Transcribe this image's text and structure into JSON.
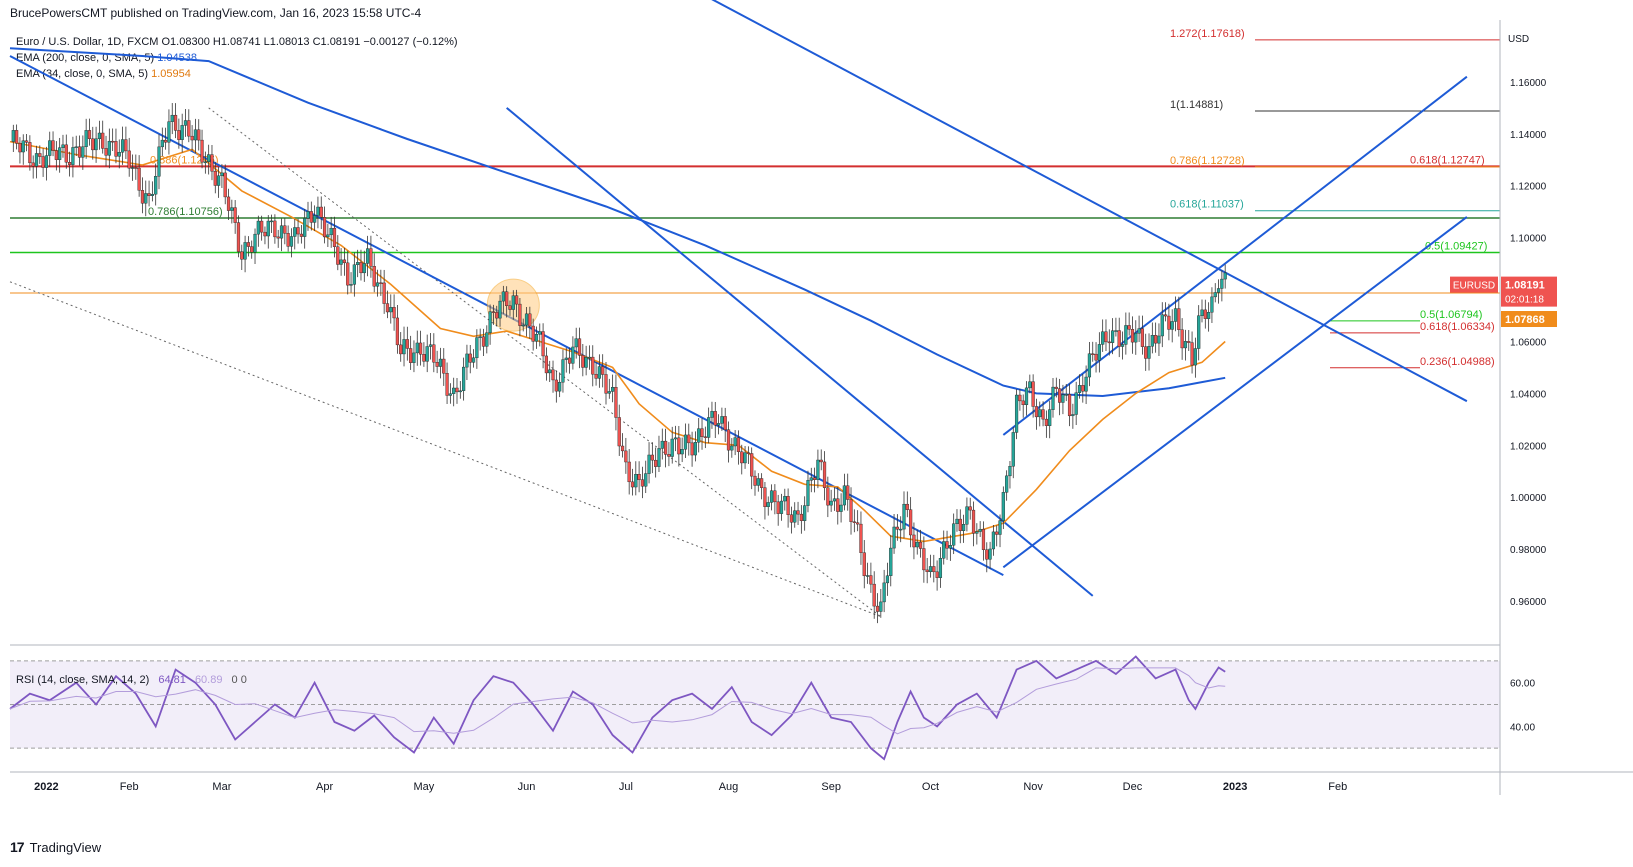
{
  "header": {
    "attribution": "BrucePowersCMT published on TradingView.com, Jan 16, 2023 15:58 UTC-4"
  },
  "legend": {
    "symbol": "Euro / U.S. Dollar, 1D, FXCM",
    "ohlc": "O1.08300 H1.08741 L1.08013 C1.08191 −0.00127 (−0.12%)",
    "ema200_label": "EMA (200, close, 0, SMA, 5)",
    "ema200_value": "1.04538",
    "ema34_label": "EMA (34, close, 0, SMA, 5)",
    "ema34_value": "1.05954"
  },
  "footer": {
    "brand": "TradingView",
    "brand_mark": "17"
  },
  "colors": {
    "blue": "#1e5bd6",
    "orange": "#f08c1c",
    "green": "#4caf50",
    "red": "#d32f2f",
    "dark_green": "#2e7d32",
    "bright_green": "#1ec51e",
    "teal": "#26a69a",
    "candle_up": "#26a69a",
    "candle_down": "#ef5350",
    "rsi": "#7e57c2"
  },
  "chart_data": {
    "type": "candlestick",
    "symbol": "EURUSD",
    "timeframe": "1D",
    "currency_label": "USD",
    "x_labels": [
      "2022",
      "Feb",
      "Mar",
      "Apr",
      "May",
      "Jun",
      "Jul",
      "Aug",
      "Sep",
      "Oct",
      "Nov",
      "Dec",
      "2023",
      "Feb"
    ],
    "y_ticks": [
      "1.16000",
      "1.14000",
      "1.12000",
      "1.10000",
      "1.08000",
      "1.06000",
      "1.04000",
      "1.02000",
      "1.00000",
      "0.98000",
      "0.96000"
    ],
    "ylim": [
      0.945,
      1.18
    ],
    "price_tags": [
      {
        "label": "EURUSD",
        "value": "1.08191",
        "sub": "02:01:18",
        "color": "#ef5350"
      },
      {
        "label": "",
        "value": "1.07868",
        "sub": "",
        "color": "#f08c1c"
      }
    ],
    "close_path_points": [
      {
        "t": 0,
        "p": 1.137
      },
      {
        "t": 8,
        "p": 1.131
      },
      {
        "t": 18,
        "p": 1.133
      },
      {
        "t": 28,
        "p": 1.138
      },
      {
        "t": 36,
        "p": 1.13
      },
      {
        "t": 42,
        "p": 1.113
      },
      {
        "t": 48,
        "p": 1.146
      },
      {
        "t": 54,
        "p": 1.14
      },
      {
        "t": 60,
        "p": 1.13
      },
      {
        "t": 64,
        "p": 1.12
      },
      {
        "t": 70,
        "p": 1.095
      },
      {
        "t": 74,
        "p": 1.1
      },
      {
        "t": 80,
        "p": 1.105
      },
      {
        "t": 86,
        "p": 1.098
      },
      {
        "t": 92,
        "p": 1.113
      },
      {
        "t": 96,
        "p": 1.1
      },
      {
        "t": 102,
        "p": 1.086
      },
      {
        "t": 108,
        "p": 1.09
      },
      {
        "t": 114,
        "p": 1.076
      },
      {
        "t": 118,
        "p": 1.055
      },
      {
        "t": 124,
        "p": 1.058
      },
      {
        "t": 128,
        "p": 1.053
      },
      {
        "t": 134,
        "p": 1.04
      },
      {
        "t": 140,
        "p": 1.055
      },
      {
        "t": 146,
        "p": 1.072
      },
      {
        "t": 152,
        "p": 1.075
      },
      {
        "t": 156,
        "p": 1.068
      },
      {
        "t": 160,
        "p": 1.058
      },
      {
        "t": 164,
        "p": 1.044
      },
      {
        "t": 170,
        "p": 1.056
      },
      {
        "t": 176,
        "p": 1.052
      },
      {
        "t": 182,
        "p": 1.037
      },
      {
        "t": 186,
        "p": 1.012
      },
      {
        "t": 190,
        "p": 1.003
      },
      {
        "t": 196,
        "p": 1.02
      },
      {
        "t": 202,
        "p": 1.018
      },
      {
        "t": 208,
        "p": 1.024
      },
      {
        "t": 214,
        "p": 1.03
      },
      {
        "t": 220,
        "p": 1.018
      },
      {
        "t": 226,
        "p": 1.005
      },
      {
        "t": 232,
        "p": 0.996
      },
      {
        "t": 238,
        "p": 0.993
      },
      {
        "t": 244,
        "p": 1.012
      },
      {
        "t": 248,
        "p": 0.998
      },
      {
        "t": 252,
        "p": 1.0
      },
      {
        "t": 256,
        "p": 0.985
      },
      {
        "t": 260,
        "p": 0.965
      },
      {
        "t": 263,
        "p": 0.955
      },
      {
        "t": 266,
        "p": 0.98
      },
      {
        "t": 270,
        "p": 0.998
      },
      {
        "t": 274,
        "p": 0.978
      },
      {
        "t": 278,
        "p": 0.97
      },
      {
        "t": 282,
        "p": 0.98
      },
      {
        "t": 286,
        "p": 0.987
      },
      {
        "t": 290,
        "p": 0.996
      },
      {
        "t": 294,
        "p": 0.98
      },
      {
        "t": 296,
        "p": 0.976
      },
      {
        "t": 300,
        "p": 1.0
      },
      {
        "t": 304,
        "p": 1.035
      },
      {
        "t": 308,
        "p": 1.04
      },
      {
        "t": 312,
        "p": 1.03
      },
      {
        "t": 316,
        "p": 1.04
      },
      {
        "t": 320,
        "p": 1.034
      },
      {
        "t": 324,
        "p": 1.045
      },
      {
        "t": 328,
        "p": 1.055
      },
      {
        "t": 332,
        "p": 1.065
      },
      {
        "t": 336,
        "p": 1.06
      },
      {
        "t": 340,
        "p": 1.063
      },
      {
        "t": 344,
        "p": 1.058
      },
      {
        "t": 348,
        "p": 1.065
      },
      {
        "t": 352,
        "p": 1.07
      },
      {
        "t": 355,
        "p": 1.06
      },
      {
        "t": 357,
        "p": 1.052
      },
      {
        "t": 359,
        "p": 1.065
      },
      {
        "t": 361,
        "p": 1.072
      },
      {
        "t": 363,
        "p": 1.075
      },
      {
        "t": 365,
        "p": 1.086
      },
      {
        "t": 367,
        "p": 1.082
      }
    ],
    "ema34_points": [
      {
        "t": 0,
        "p": 1.137
      },
      {
        "t": 20,
        "p": 1.132
      },
      {
        "t": 40,
        "p": 1.128
      },
      {
        "t": 55,
        "p": 1.134
      },
      {
        "t": 70,
        "p": 1.118
      },
      {
        "t": 85,
        "p": 1.108
      },
      {
        "t": 100,
        "p": 1.097
      },
      {
        "t": 115,
        "p": 1.082
      },
      {
        "t": 130,
        "p": 1.065
      },
      {
        "t": 140,
        "p": 1.062
      },
      {
        "t": 150,
        "p": 1.064
      },
      {
        "t": 160,
        "p": 1.06
      },
      {
        "t": 170,
        "p": 1.056
      },
      {
        "t": 182,
        "p": 1.05
      },
      {
        "t": 190,
        "p": 1.036
      },
      {
        "t": 200,
        "p": 1.025
      },
      {
        "t": 210,
        "p": 1.021
      },
      {
        "t": 220,
        "p": 1.02
      },
      {
        "t": 230,
        "p": 1.01
      },
      {
        "t": 240,
        "p": 1.005
      },
      {
        "t": 250,
        "p": 1.004
      },
      {
        "t": 258,
        "p": 0.995
      },
      {
        "t": 266,
        "p": 0.985
      },
      {
        "t": 276,
        "p": 0.983
      },
      {
        "t": 290,
        "p": 0.986
      },
      {
        "t": 300,
        "p": 0.99
      },
      {
        "t": 310,
        "p": 1.003
      },
      {
        "t": 320,
        "p": 1.018
      },
      {
        "t": 330,
        "p": 1.03
      },
      {
        "t": 340,
        "p": 1.04
      },
      {
        "t": 350,
        "p": 1.048
      },
      {
        "t": 360,
        "p": 1.052
      },
      {
        "t": 367,
        "p": 1.06
      }
    ],
    "ema200_points": [
      {
        "t": 0,
        "p": 1.173
      },
      {
        "t": 40,
        "p": 1.17
      },
      {
        "t": 60,
        "p": 1.168
      },
      {
        "t": 90,
        "p": 1.152
      },
      {
        "t": 120,
        "p": 1.138
      },
      {
        "t": 150,
        "p": 1.125
      },
      {
        "t": 180,
        "p": 1.112
      },
      {
        "t": 210,
        "p": 1.097
      },
      {
        "t": 240,
        "p": 1.08
      },
      {
        "t": 260,
        "p": 1.068
      },
      {
        "t": 280,
        "p": 1.055
      },
      {
        "t": 300,
        "p": 1.043
      },
      {
        "t": 310,
        "p": 1.04
      },
      {
        "t": 330,
        "p": 1.039
      },
      {
        "t": 350,
        "p": 1.042
      },
      {
        "t": 367,
        "p": 1.046
      }
    ],
    "horizontal_levels": [
      {
        "name": "red-level-1-12747",
        "price": 1.12747,
        "color": "#d32f2f",
        "width": 2
      },
      {
        "name": "green-level-1-10756",
        "price": 1.10756,
        "color": "#2e7d32",
        "width": 1.5
      },
      {
        "name": "green-level-1-09427",
        "price": 1.09427,
        "color": "#1ec51e",
        "width": 1.5
      },
      {
        "name": "orange-level",
        "price": 1.07868,
        "color": "#f08c1c",
        "width": 1
      }
    ],
    "fib_labels": [
      {
        "text": "1.272(1.17618)",
        "price": 1.17618,
        "color": "#d32f2f"
      },
      {
        "text": "1(1.14881)",
        "price": 1.14881,
        "color": "#333333"
      },
      {
        "text": "0.786(1.12728)",
        "price": 1.12728,
        "color": "#f08c1c"
      },
      {
        "text": "0.618(1.12747)",
        "price": 1.12747,
        "color": "#d32f2f"
      },
      {
        "text": "0.618(1.11037)",
        "price": 1.11037,
        "color": "#26a69a"
      },
      {
        "text": "0.786(1.10756)",
        "price": 1.10756,
        "color": "#2e7d32"
      },
      {
        "text": "0.5(1.09427)",
        "price": 1.09427,
        "color": "#1ec51e"
      },
      {
        "text": "0.5(1.06794)",
        "price": 1.06794,
        "color": "#1ec51e"
      },
      {
        "text": "0.618(1.06334)",
        "price": 1.06334,
        "color": "#d32f2f"
      },
      {
        "text": "0.236(1.04988)",
        "price": 1.04988,
        "color": "#d32f2f"
      },
      {
        "text": "0.886(1.1275)",
        "price": 1.1275,
        "color": "#f08c1c"
      }
    ],
    "trendlines": [
      {
        "name": "downtrend-1",
        "from": {
          "t": 0,
          "p": 1.17
        },
        "to": {
          "t": 300,
          "p": 0.97
        }
      },
      {
        "name": "downtrend-2",
        "from": {
          "t": 200,
          "p": 1.2
        },
        "to": {
          "t": 440,
          "p": 1.037
        }
      },
      {
        "name": "downtrend-3",
        "from": {
          "t": 150,
          "p": 1.15
        },
        "to": {
          "t": 327,
          "p": 0.962
        }
      },
      {
        "name": "channel-lower",
        "from": {
          "t": 300,
          "p": 0.973
        },
        "to": {
          "t": 440,
          "p": 1.108
        }
      },
      {
        "name": "channel-upper",
        "from": {
          "t": 300,
          "p": 1.024
        },
        "to": {
          "t": 440,
          "p": 1.162
        }
      }
    ],
    "rsi": {
      "label": "RSI (14, close, SMA, 14, 2)",
      "value": "64.81",
      "ma_value": "60.89",
      "extra": "0   0",
      "y_ticks": [
        "60.00",
        "40.00"
      ],
      "levels": [
        70,
        50,
        30
      ],
      "ylim": [
        20,
        75
      ],
      "points": [
        {
          "t": 0,
          "p": 48
        },
        {
          "t": 6,
          "p": 55
        },
        {
          "t": 12,
          "p": 52
        },
        {
          "t": 20,
          "p": 60
        },
        {
          "t": 26,
          "p": 50
        },
        {
          "t": 32,
          "p": 63
        },
        {
          "t": 38,
          "p": 55
        },
        {
          "t": 44,
          "p": 40
        },
        {
          "t": 50,
          "p": 66
        },
        {
          "t": 56,
          "p": 60
        },
        {
          "t": 62,
          "p": 50
        },
        {
          "t": 68,
          "p": 34
        },
        {
          "t": 74,
          "p": 42
        },
        {
          "t": 80,
          "p": 50
        },
        {
          "t": 86,
          "p": 44
        },
        {
          "t": 92,
          "p": 60
        },
        {
          "t": 98,
          "p": 42
        },
        {
          "t": 104,
          "p": 38
        },
        {
          "t": 110,
          "p": 45
        },
        {
          "t": 116,
          "p": 35
        },
        {
          "t": 122,
          "p": 28
        },
        {
          "t": 128,
          "p": 44
        },
        {
          "t": 134,
          "p": 32
        },
        {
          "t": 140,
          "p": 52
        },
        {
          "t": 146,
          "p": 63
        },
        {
          "t": 152,
          "p": 60
        },
        {
          "t": 158,
          "p": 50
        },
        {
          "t": 164,
          "p": 38
        },
        {
          "t": 170,
          "p": 56
        },
        {
          "t": 176,
          "p": 50
        },
        {
          "t": 182,
          "p": 36
        },
        {
          "t": 188,
          "p": 28
        },
        {
          "t": 194,
          "p": 44
        },
        {
          "t": 200,
          "p": 52
        },
        {
          "t": 206,
          "p": 55
        },
        {
          "t": 212,
          "p": 48
        },
        {
          "t": 218,
          "p": 58
        },
        {
          "t": 224,
          "p": 42
        },
        {
          "t": 230,
          "p": 36
        },
        {
          "t": 236,
          "p": 45
        },
        {
          "t": 242,
          "p": 60
        },
        {
          "t": 248,
          "p": 44
        },
        {
          "t": 254,
          "p": 42
        },
        {
          "t": 260,
          "p": 30
        },
        {
          "t": 264,
          "p": 25
        },
        {
          "t": 268,
          "p": 42
        },
        {
          "t": 272,
          "p": 56
        },
        {
          "t": 276,
          "p": 44
        },
        {
          "t": 280,
          "p": 40
        },
        {
          "t": 286,
          "p": 50
        },
        {
          "t": 292,
          "p": 55
        },
        {
          "t": 298,
          "p": 44
        },
        {
          "t": 304,
          "p": 66
        },
        {
          "t": 310,
          "p": 70
        },
        {
          "t": 316,
          "p": 62
        },
        {
          "t": 322,
          "p": 66
        },
        {
          "t": 328,
          "p": 70
        },
        {
          "t": 334,
          "p": 64
        },
        {
          "t": 340,
          "p": 72
        },
        {
          "t": 346,
          "p": 62
        },
        {
          "t": 352,
          "p": 66
        },
        {
          "t": 356,
          "p": 52
        },
        {
          "t": 358,
          "p": 48
        },
        {
          "t": 362,
          "p": 60
        },
        {
          "t": 365,
          "p": 67
        },
        {
          "t": 367,
          "p": 65
        }
      ]
    }
  }
}
